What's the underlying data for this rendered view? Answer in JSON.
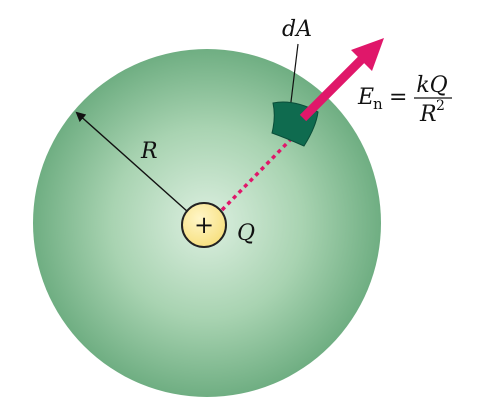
{
  "labels": {
    "area_element": "dA",
    "radius": "R",
    "charge": "Q",
    "charge_sign": "+",
    "field_symbol": "E",
    "field_subscript": "n",
    "equals": "=",
    "numerator": "kQ",
    "denominator_base": "R",
    "denominator_exponent": "2"
  },
  "colors": {
    "sphere_center": "#dcefe0",
    "sphere_mid": "#a8d3b1",
    "sphere_edge": "#6fae82",
    "patch": "#0f6b4f",
    "field_vector": "#e0176a",
    "charge_fill": "#f7df7c",
    "charge_stroke": "#222222",
    "radius_line": "#111111"
  },
  "icons": {
    "field_arrow": "arrow-up-right",
    "radius_arrow": "arrow-up-left"
  }
}
